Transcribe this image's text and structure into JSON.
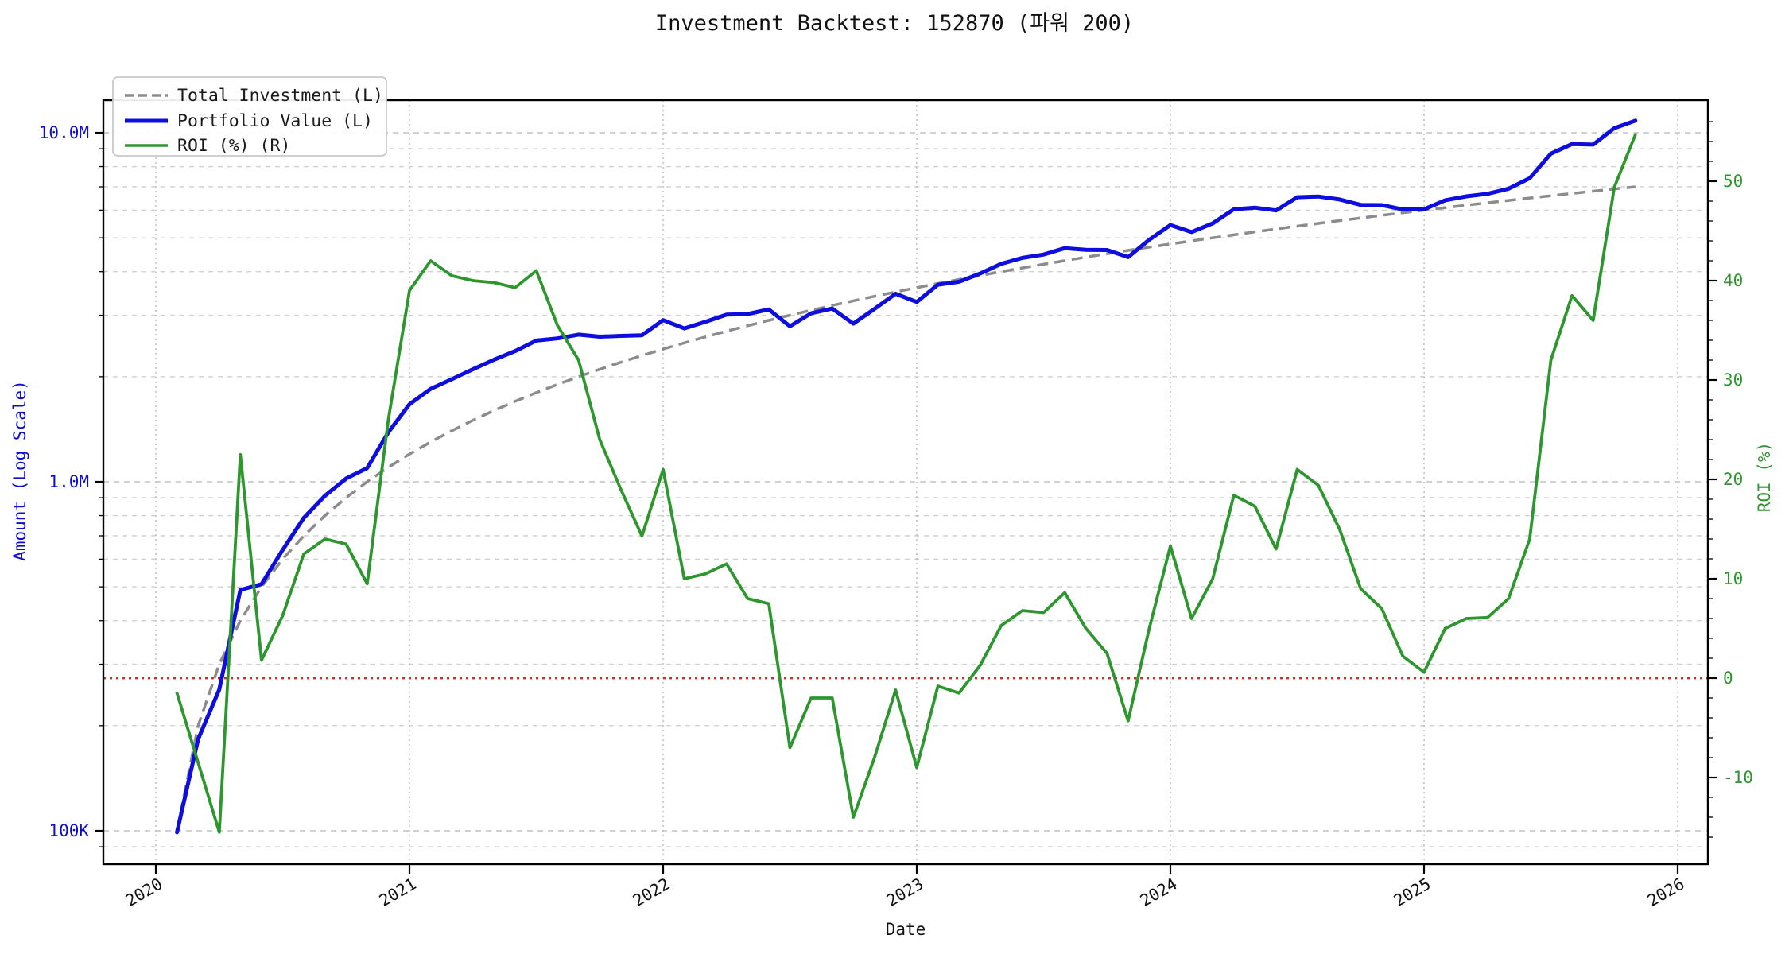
{
  "title": "Investment Backtest: 152870 (파워 200)",
  "chart_data": {
    "type": "line",
    "title": "Investment Backtest: 152870 (파워 200)",
    "xlabel": "Date",
    "ylabel_left": "Amount (Log Scale)",
    "ylabel_right": "ROI (%)",
    "grid": true,
    "legend_position": "upper-left",
    "x_axis": {
      "tick_labels": [
        "2020",
        "2021",
        "2022",
        "2023",
        "2024",
        "2025",
        "2026"
      ]
    },
    "left_axis": {
      "scale": "log",
      "tick_labels": [
        "100K",
        "1.0M",
        "10.0M"
      ],
      "tick_values_millions": [
        0.1,
        1,
        10
      ],
      "minor_tick_values_millions": [
        0.09,
        0.2,
        0.3,
        0.4,
        0.5,
        0.6,
        0.7,
        0.8,
        0.9,
        2,
        3,
        4,
        5,
        6,
        7,
        8,
        9
      ],
      "label_color": "#0d0dcf"
    },
    "right_axis": {
      "scale": "linear",
      "tick_values": [
        -10,
        0,
        10,
        20,
        30,
        40,
        50
      ],
      "minor_tick_step": 2,
      "approx_range": [
        -18.6,
        58.2
      ],
      "label_color": "#2e962e"
    },
    "zero_line": {
      "axis": "right",
      "value": 0,
      "color": "#d62728",
      "style": "dotted"
    },
    "legend": [
      {
        "label": "Total Investment (L)",
        "color": "#8c8c8c",
        "style": "dashed"
      },
      {
        "label": "Portfolio Value (L)",
        "color": "#0d0ddf",
        "style": "solid"
      },
      {
        "label": "ROI (%) (R)",
        "color": "#2e962e",
        "style": "solid"
      }
    ],
    "months": [
      "2020-02",
      "2020-03",
      "2020-04",
      "2020-05",
      "2020-06",
      "2020-07",
      "2020-08",
      "2020-09",
      "2020-10",
      "2020-11",
      "2020-12",
      "2021-01",
      "2021-02",
      "2021-03",
      "2021-04",
      "2021-05",
      "2021-06",
      "2021-07",
      "2021-08",
      "2021-09",
      "2021-10",
      "2021-11",
      "2021-12",
      "2022-01",
      "2022-02",
      "2022-03",
      "2022-04",
      "2022-05",
      "2022-06",
      "2022-07",
      "2022-08",
      "2022-09",
      "2022-10",
      "2022-11",
      "2022-12",
      "2023-01",
      "2023-02",
      "2023-03",
      "2023-04",
      "2023-05",
      "2023-06",
      "2023-07",
      "2023-08",
      "2023-09",
      "2023-10",
      "2023-11",
      "2023-12",
      "2024-01",
      "2024-02",
      "2024-03",
      "2024-04",
      "2024-05",
      "2024-06",
      "2024-07",
      "2024-08",
      "2024-09",
      "2024-10",
      "2024-11",
      "2024-12",
      "2025-01",
      "2025-02",
      "2025-03",
      "2025-04",
      "2025-05",
      "2025-06",
      "2025-07",
      "2025-08",
      "2025-09",
      "2025-10",
      "2025-11"
    ],
    "series": [
      {
        "name": "Total Investment (L)",
        "axis": "left",
        "unit": "millions",
        "values": [
          0.1,
          0.2,
          0.3,
          0.4,
          0.5,
          0.6,
          0.7,
          0.8,
          0.9,
          1.0,
          1.1,
          1.2,
          1.3,
          1.4,
          1.5,
          1.6,
          1.7,
          1.8,
          1.9,
          2.0,
          2.1,
          2.2,
          2.3,
          2.4,
          2.5,
          2.6,
          2.7,
          2.8,
          2.9,
          3.0,
          3.1,
          3.2,
          3.3,
          3.4,
          3.5,
          3.6,
          3.7,
          3.8,
          3.9,
          4.0,
          4.1,
          4.2,
          4.3,
          4.4,
          4.5,
          4.6,
          4.7,
          4.8,
          4.9,
          5.0,
          5.1,
          5.2,
          5.3,
          5.4,
          5.5,
          5.6,
          5.7,
          5.8,
          5.9,
          6.0,
          6.1,
          6.2,
          6.3,
          6.4,
          6.5,
          6.6,
          6.7,
          6.8,
          6.9,
          7.0
        ]
      },
      {
        "name": "Portfolio Value (L)",
        "axis": "left",
        "unit": "millions",
        "values": [
          0.099,
          0.183,
          0.254,
          0.49,
          0.509,
          0.638,
          0.788,
          0.912,
          1.022,
          1.095,
          1.386,
          1.668,
          1.846,
          1.967,
          2.1,
          2.237,
          2.368,
          2.538,
          2.575,
          2.64,
          2.604,
          2.618,
          2.629,
          2.904,
          2.75,
          2.873,
          3.011,
          3.024,
          3.118,
          2.79,
          3.038,
          3.136,
          2.838,
          3.128,
          3.458,
          3.276,
          3.67,
          3.743,
          3.951,
          4.212,
          4.379,
          4.477,
          4.67,
          4.62,
          4.613,
          4.402,
          4.935,
          5.438,
          5.194,
          5.5,
          6.038,
          6.1,
          5.989,
          6.534,
          6.567,
          6.44,
          6.213,
          6.206,
          6.03,
          6.036,
          6.405,
          6.572,
          6.684,
          6.912,
          7.41,
          8.712,
          9.28,
          9.248,
          10.309,
          10.829
        ]
      },
      {
        "name": "ROI (%) (R)",
        "axis": "right",
        "unit": "percent",
        "values": [
          -1.5,
          -8.5,
          -15.5,
          22.5,
          1.8,
          6.3,
          12.5,
          14,
          13.5,
          9.5,
          26,
          39,
          42,
          40.5,
          40,
          39.8,
          39.3,
          41,
          35.5,
          32,
          24,
          19,
          14.3,
          21,
          10,
          10.5,
          11.5,
          8,
          7.5,
          -7,
          -2,
          -2,
          -14,
          -8,
          -1.2,
          -9,
          -0.8,
          -1.5,
          1.3,
          5.3,
          6.8,
          6.6,
          8.6,
          5,
          2.5,
          -4.3,
          5,
          13.3,
          6,
          10,
          18.4,
          17.3,
          13,
          21,
          19.4,
          15,
          9,
          7,
          2.2,
          0.6,
          5,
          6,
          6.1,
          8,
          14,
          32,
          38.5,
          36,
          49.4,
          54.7
        ]
      }
    ]
  }
}
